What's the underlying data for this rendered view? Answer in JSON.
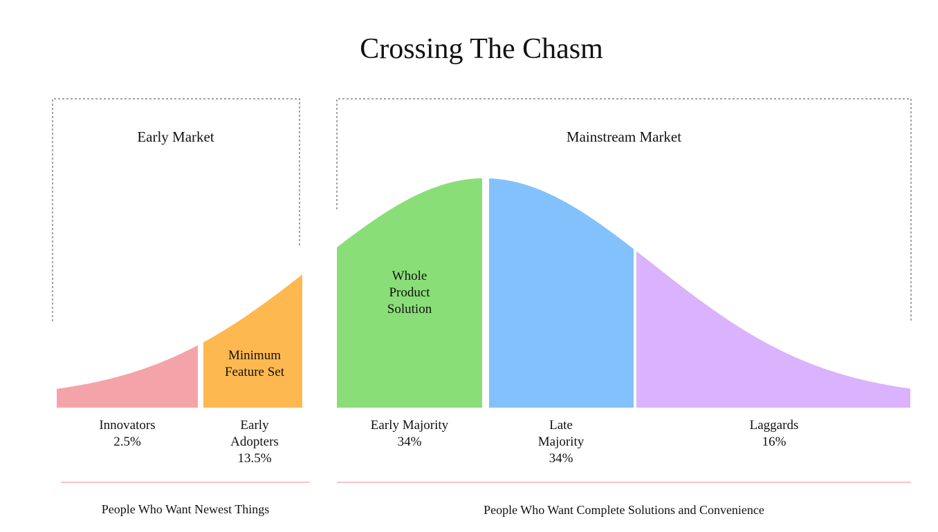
{
  "title": "Crossing The Chasm",
  "markets": [
    {
      "label": "Early Market"
    },
    {
      "label": "Mainstream Market"
    }
  ],
  "segments": [
    {
      "name": "Innovators",
      "share": "2.5%"
    },
    {
      "name": "Early Adopters",
      "share": "13.5%"
    },
    {
      "name": "Early Majority",
      "share": "34%"
    },
    {
      "name": "Late Majority",
      "share": "34%"
    },
    {
      "name": "Laggards",
      "share": "16%"
    }
  ],
  "callouts": [
    {
      "text": "Minimum Feature Set"
    },
    {
      "text": "Whole Product Solution"
    }
  ],
  "groups": [
    {
      "label": "People Who Want Newest Things"
    },
    {
      "label": "People Who Want Complete Solutions and Convenience"
    }
  ]
}
